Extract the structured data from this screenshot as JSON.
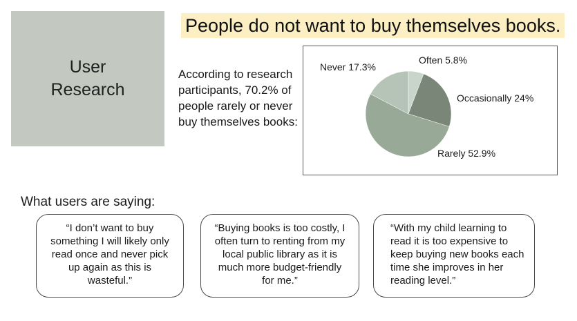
{
  "section": {
    "line1": "User",
    "line2": "Research"
  },
  "headline": "People do not want to buy themselves books.",
  "summary": "According to research participants, 70.2% of people rarely or never buy themselves books:",
  "chart_data": {
    "type": "pie",
    "title": "",
    "slices": [
      {
        "label": "Often",
        "value": 5.8,
        "text": "Often 5.8%",
        "color": "#c9d4cb"
      },
      {
        "label": "Occasionally",
        "value": 24,
        "text": "Occasionally 24%",
        "color": "#7a8677"
      },
      {
        "label": "Rarely",
        "value": 52.9,
        "text": "Rarely 52.9%",
        "color": "#98a997"
      },
      {
        "label": "Never",
        "value": 17.3,
        "text": "Never 17.3%",
        "color": "#b6c4b7"
      }
    ]
  },
  "subhead": "What users are saying:",
  "quotes": [
    "“I don’t want to buy something I will likely only read once and never pick up again as this is wasteful.”",
    "“Buying books is too costly, I often turn to renting from my local public library as it is much more budget-friendly for me.”",
    "“With my child learning to read it is too expensive to keep buying new books each time she improves in her reading level.”"
  ]
}
